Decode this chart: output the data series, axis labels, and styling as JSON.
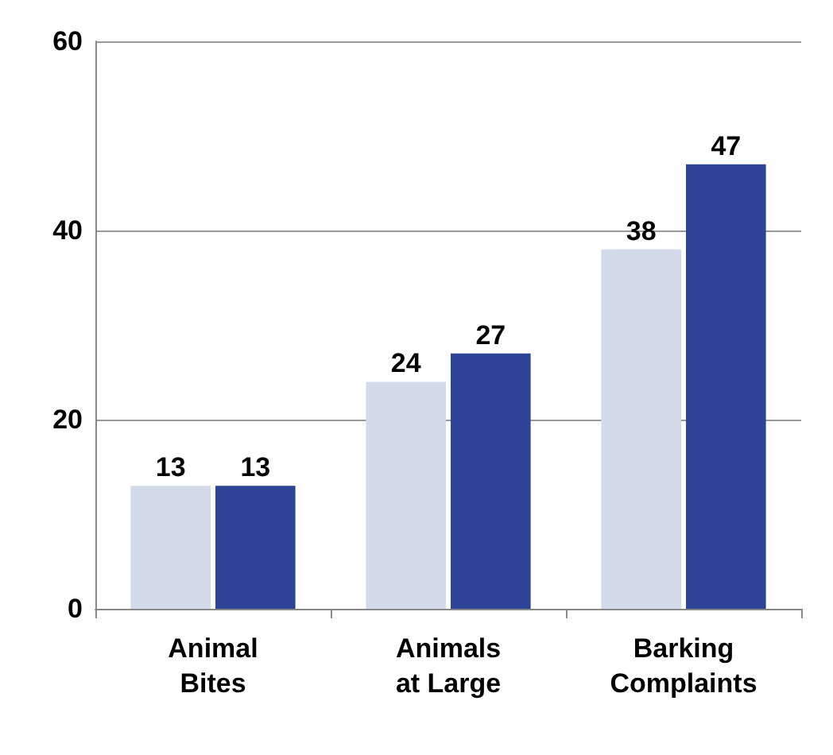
{
  "chart_data": {
    "type": "bar",
    "categories": [
      "Animal\nBites",
      "Animals\nat Large",
      "Barking\nComplaints"
    ],
    "series": [
      {
        "color": "#d3dbea",
        "values": [
          13,
          24,
          38
        ]
      },
      {
        "color": "#2d4496",
        "values": [
          13,
          27,
          47
        ]
      }
    ],
    "ylim": [
      0,
      60
    ],
    "yticks": [
      0,
      20,
      40,
      60
    ],
    "grid": "y",
    "data_labels": true
  }
}
